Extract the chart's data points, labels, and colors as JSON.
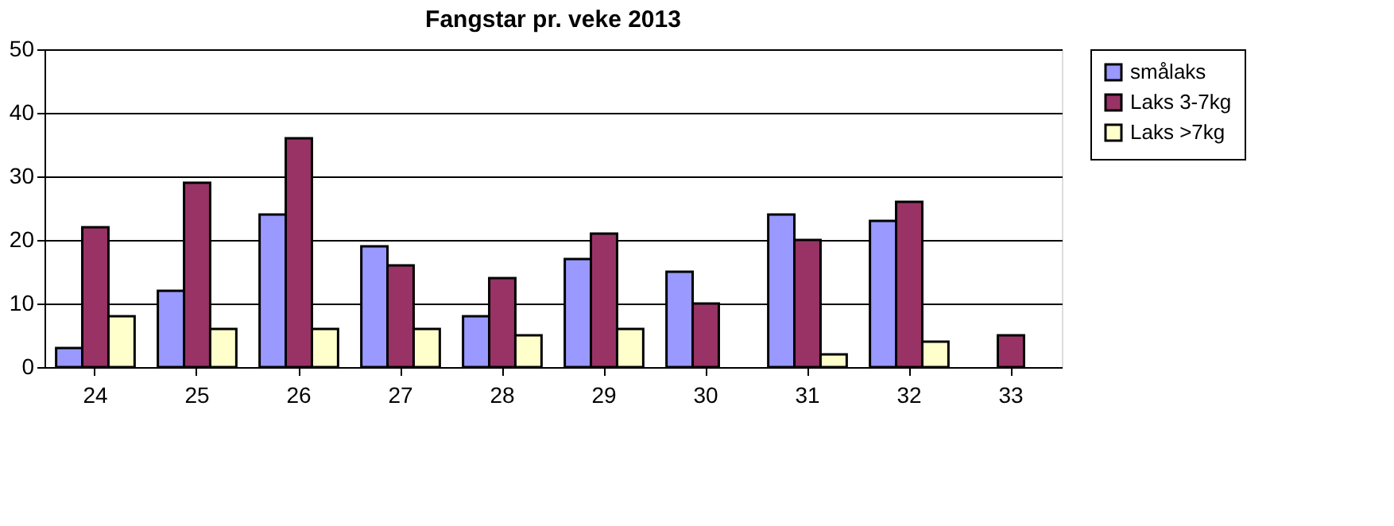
{
  "chart_data": {
    "type": "bar",
    "title": "Fangstar pr. veke 2013",
    "categories": [
      "24",
      "25",
      "26",
      "27",
      "28",
      "29",
      "30",
      "31",
      "32",
      "33"
    ],
    "series": [
      {
        "name": "smålaks",
        "color": "#9999ff",
        "values": [
          3,
          12,
          24,
          19,
          8,
          17,
          15,
          24,
          23,
          null
        ]
      },
      {
        "name": "Laks 3-7kg",
        "color": "#993366",
        "values": [
          22,
          29,
          36,
          16,
          14,
          21,
          10,
          20,
          26,
          5
        ]
      },
      {
        "name": "Laks >7kg",
        "color": "#ffffcc",
        "values": [
          8,
          6,
          6,
          6,
          5,
          6,
          null,
          2,
          4,
          null
        ]
      }
    ],
    "ylim": [
      0,
      50
    ],
    "yticks": [
      0,
      10,
      20,
      30,
      40,
      50
    ],
    "grid": "y",
    "legend": "right"
  }
}
